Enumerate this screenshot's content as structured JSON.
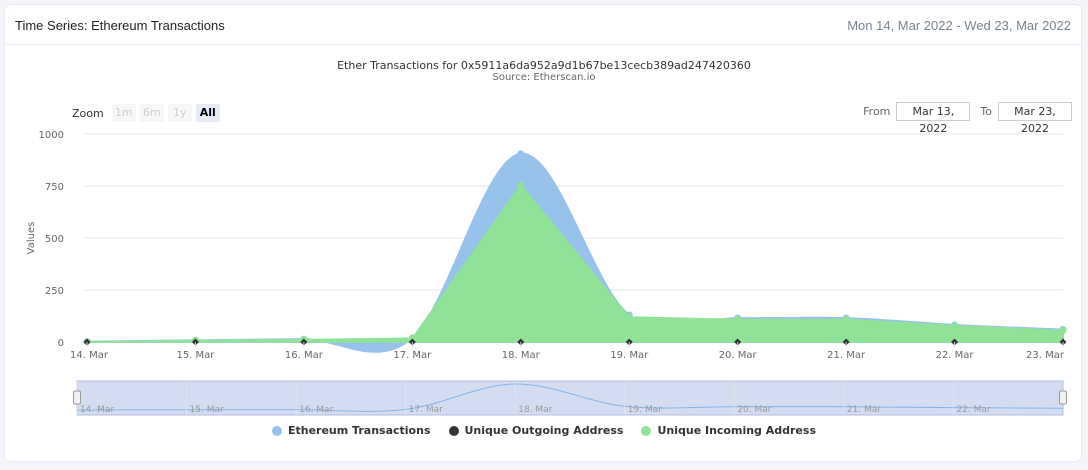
{
  "header": {
    "title": "Time Series: Ethereum Transactions",
    "date_range": "Mon 14, Mar 2022 - Wed 23, Mar 2022"
  },
  "zoom": {
    "label": "Zoom",
    "buttons": [
      "1m",
      "6m",
      "1y",
      "All"
    ],
    "active": "All"
  },
  "range": {
    "from_label": "From",
    "from_value": "Mar 13, 2022",
    "to_label": "To",
    "to_value": "Mar 23, 2022"
  },
  "chart_data": {
    "type": "area",
    "title": "Ether Transactions for 0x5911a6da952a9d1b67be13cecb389ad247420360",
    "subtitle": "Source: Etherscan.io",
    "ylabel": "Values",
    "ylim": [
      0,
      1000
    ],
    "yticks": [
      0,
      250,
      500,
      750,
      1000
    ],
    "x": [
      "14. Mar",
      "15. Mar",
      "16. Mar",
      "17. Mar",
      "18. Mar",
      "19. Mar",
      "20. Mar",
      "21. Mar",
      "22. Mar",
      "23. Mar"
    ],
    "series": [
      {
        "name": "Ethereum Transactions",
        "color": "#97c2ec",
        "values": [
          2,
          8,
          14,
          20,
          905,
          130,
          115,
          115,
          82,
          60
        ]
      },
      {
        "name": "Unique Outgoing Address",
        "color": "#333333",
        "values": [
          0,
          0,
          0,
          0,
          0,
          0,
          0,
          0,
          0,
          0
        ]
      },
      {
        "name": "Unique Incoming Address",
        "color": "#90e396",
        "values": [
          2,
          7,
          12,
          18,
          755,
          120,
          108,
          108,
          78,
          55
        ]
      }
    ],
    "legend_position": "bottom",
    "navigator_labels": [
      "14. Mar",
      "15. Mar",
      "16. Mar",
      "17. Mar",
      "18. Mar",
      "19. Mar",
      "20. Mar",
      "21. Mar",
      "22. Mar"
    ]
  }
}
